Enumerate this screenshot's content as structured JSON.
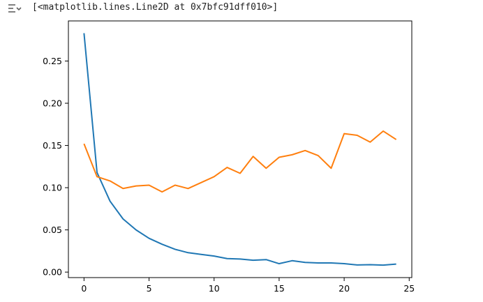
{
  "output": {
    "repr_text": "[<matplotlib.lines.Line2D at 0x7bfc91dff010>]",
    "icon": "output-toggle-icon"
  },
  "chart_data": {
    "type": "line",
    "title": "",
    "xlabel": "",
    "ylabel": "",
    "xlim": [
      -1.2,
      25.2
    ],
    "ylim": [
      -0.0065,
      0.2975
    ],
    "xticks": [
      0,
      5,
      10,
      15,
      20,
      25
    ],
    "yticks": [
      0.0,
      0.05,
      0.1,
      0.15,
      0.2,
      0.25
    ],
    "ytick_labels": [
      "0.00",
      "0.05",
      "0.10",
      "0.15",
      "0.20",
      "0.25"
    ],
    "xtick_labels": [
      "0",
      "5",
      "10",
      "15",
      "20",
      "25"
    ],
    "grid": false,
    "legend": "none",
    "series": [
      {
        "color": "#1f77b4",
        "x": [
          0,
          1,
          2,
          3,
          4,
          5,
          6,
          7,
          8,
          9,
          10,
          11,
          12,
          13,
          14,
          15,
          16,
          17,
          18,
          19,
          20,
          21,
          22,
          23,
          24
        ],
        "values": [
          0.283,
          0.118,
          0.084,
          0.063,
          0.05,
          0.04,
          0.033,
          0.027,
          0.023,
          0.021,
          0.019,
          0.016,
          0.0155,
          0.014,
          0.0148,
          0.01,
          0.0135,
          0.0115,
          0.0108,
          0.0108,
          0.01,
          0.0085,
          0.0088,
          0.0083,
          0.0095
        ]
      },
      {
        "color": "#ff7f0e",
        "x": [
          0,
          1,
          2,
          3,
          4,
          5,
          6,
          7,
          8,
          9,
          10,
          11,
          12,
          13,
          14,
          15,
          16,
          17,
          18,
          19,
          20,
          21,
          22,
          23,
          24
        ],
        "values": [
          0.152,
          0.113,
          0.108,
          0.099,
          0.102,
          0.103,
          0.095,
          0.103,
          0.099,
          0.106,
          0.113,
          0.124,
          0.117,
          0.137,
          0.123,
          0.136,
          0.139,
          0.144,
          0.138,
          0.123,
          0.164,
          0.162,
          0.154,
          0.167,
          0.157
        ]
      }
    ]
  }
}
